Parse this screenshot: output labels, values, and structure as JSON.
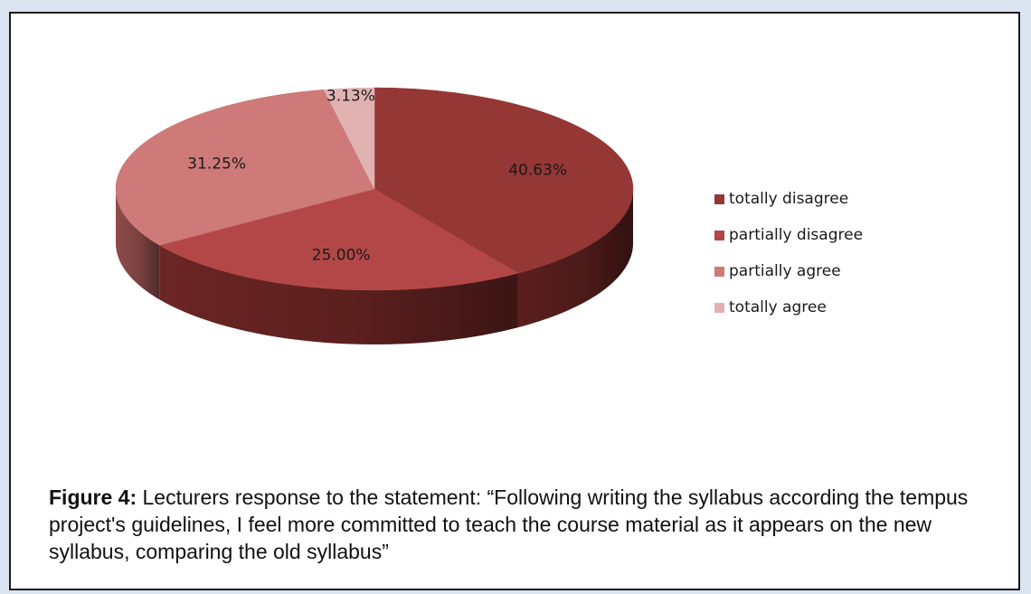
{
  "chart_data": {
    "type": "pie",
    "style": "3d",
    "slices": [
      {
        "label": "totally disagree",
        "value": 40.63,
        "display": "40.63%",
        "color": "#953735",
        "side_color": "#5a1f1e"
      },
      {
        "label": "partially disagree",
        "value": 25.0,
        "display": "25.00%",
        "color": "#b34747",
        "side_color": "#6b2524"
      },
      {
        "label": "partially agree",
        "value": 31.25,
        "display": "31.25%",
        "color": "#cd7a78",
        "side_color": "#8f4c4a"
      },
      {
        "label": "totally agree",
        "value": 3.13,
        "display": "3.13%",
        "color": "#e0b3b2",
        "side_color": "#a88180"
      }
    ],
    "legend_position": "right"
  },
  "caption": {
    "prefix": "Figure 4:",
    "text": " Lecturers response to the statement: “Following writing the syllabus according the tempus project's guidelines, I feel more committed to teach the course material as it appears on the new syllabus, comparing the old syllabus”"
  }
}
